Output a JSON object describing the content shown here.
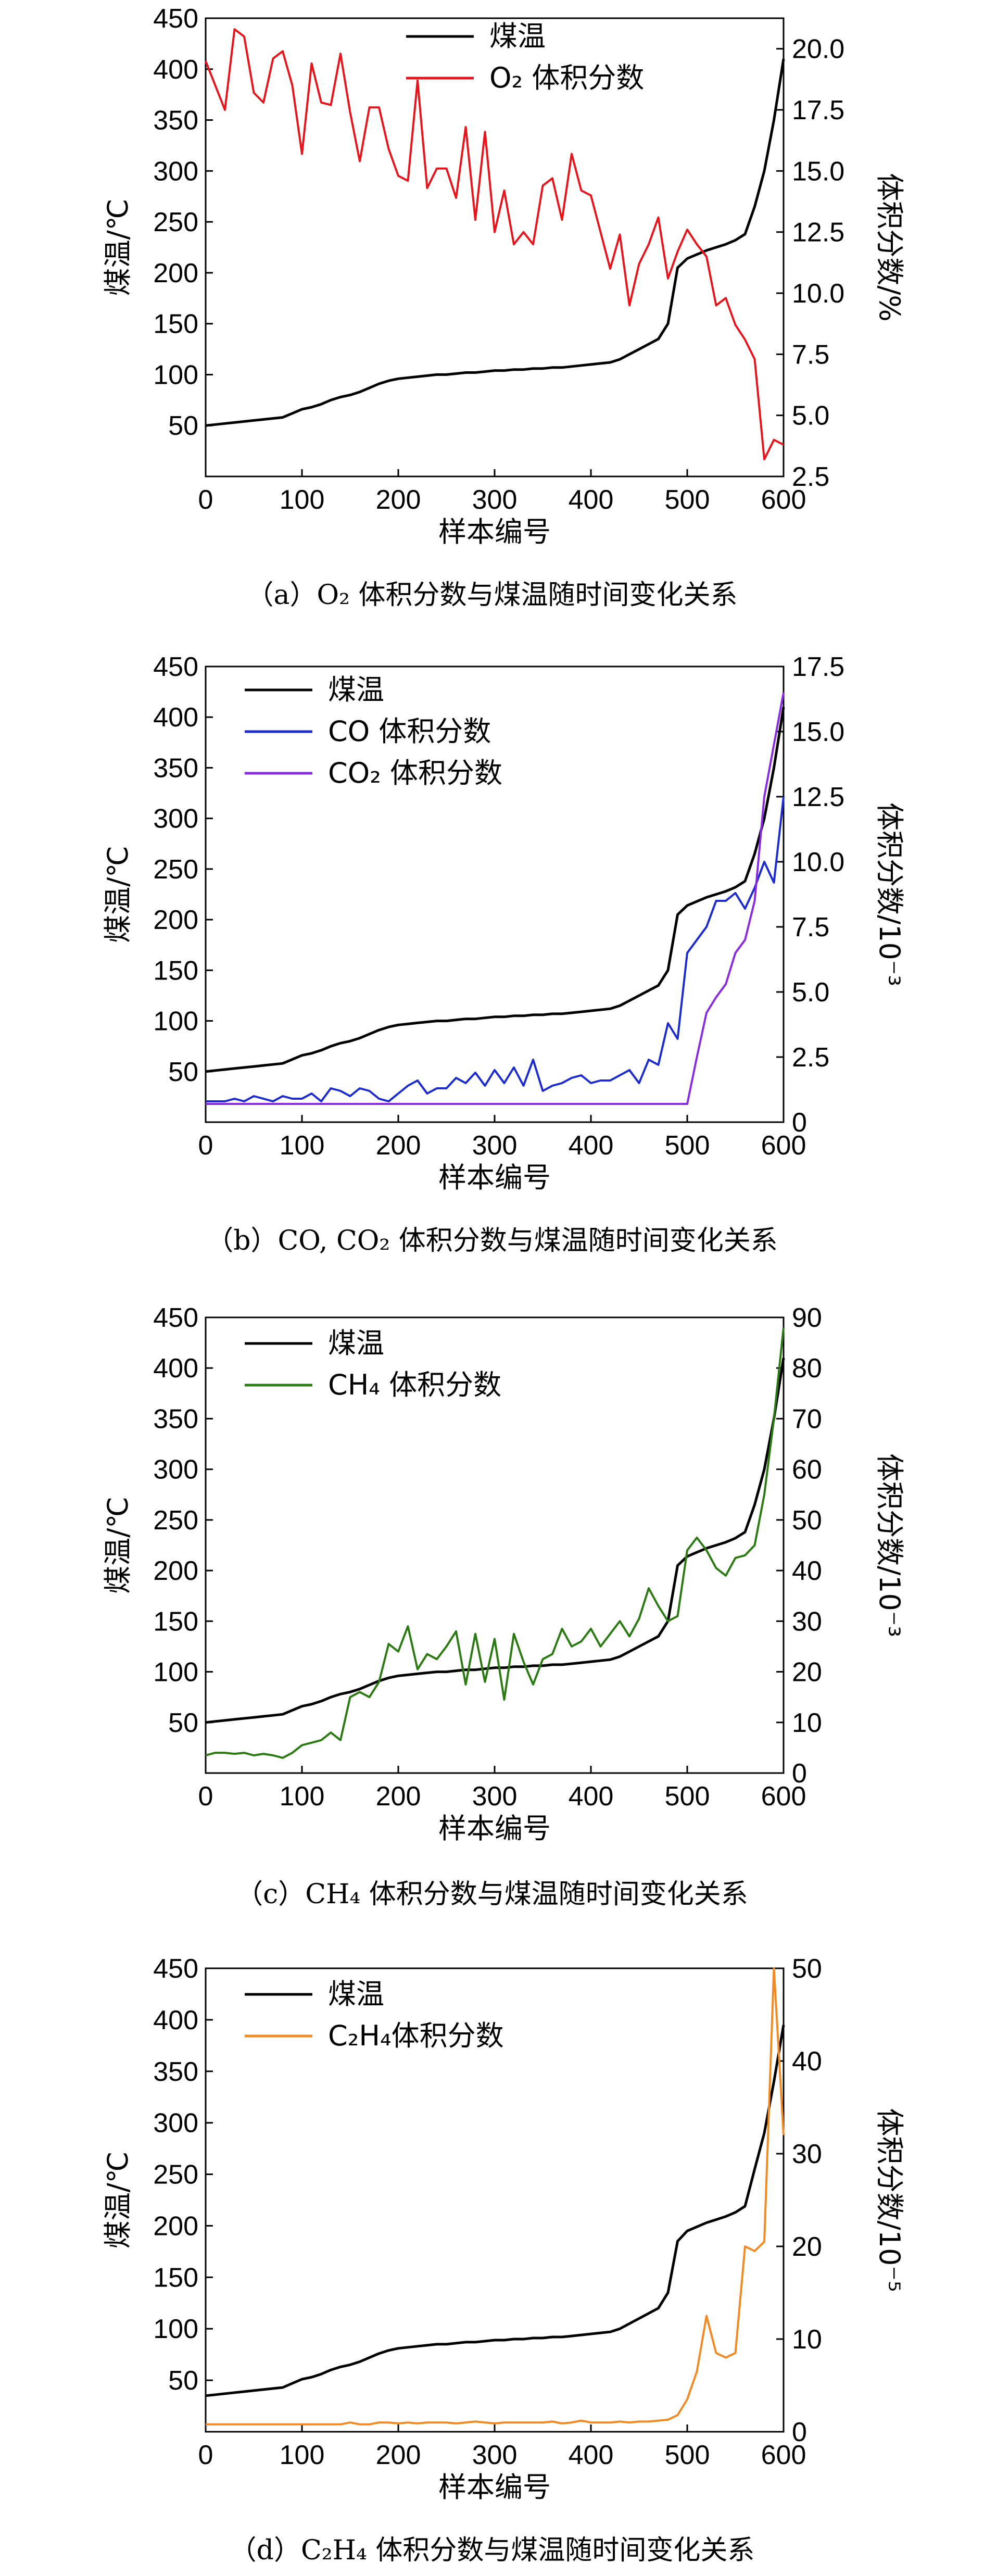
{
  "chart_data": [
    {
      "type": "line",
      "caption": "（a）O₂ 体积分数与煤温随时间变化关系",
      "xlabel": "样本编号",
      "ylabel": "煤温/℃",
      "y2label": "体积分数/%",
      "xlim": [
        0,
        600
      ],
      "ylim": [
        0,
        450
      ],
      "y2lim": [
        2.5,
        21.25
      ],
      "xticks": [
        "0",
        "100",
        "200",
        "300",
        "400",
        "500",
        "600"
      ],
      "yticks": [
        "50",
        "100",
        "150",
        "200",
        "250",
        "300",
        "350",
        "400",
        "450"
      ],
      "y2ticks": [
        "2.5",
        "5.0",
        "7.5",
        "10.0",
        "12.5",
        "15.0",
        "17.5",
        "20.0"
      ],
      "legend_position": "top-center",
      "x": [
        0,
        10,
        20,
        30,
        40,
        50,
        60,
        70,
        80,
        90,
        100,
        110,
        120,
        130,
        140,
        150,
        160,
        170,
        180,
        190,
        200,
        210,
        220,
        230,
        240,
        250,
        260,
        270,
        280,
        290,
        300,
        310,
        320,
        330,
        340,
        350,
        360,
        370,
        380,
        390,
        400,
        410,
        420,
        430,
        440,
        450,
        460,
        470,
        480,
        490,
        500,
        510,
        520,
        530,
        540,
        550,
        560,
        570,
        580,
        590,
        600
      ],
      "series": [
        {
          "name": "煤温",
          "axis": "left",
          "color": "#000000",
          "values": [
            50,
            51,
            52,
            53,
            54,
            55,
            56,
            57,
            58,
            62,
            66,
            68,
            71,
            75,
            78,
            80,
            83,
            87,
            91,
            94,
            96,
            97,
            98,
            99,
            100,
            100,
            101,
            102,
            102,
            103,
            104,
            104,
            105,
            105,
            106,
            106,
            107,
            107,
            108,
            109,
            110,
            111,
            112,
            115,
            120,
            125,
            130,
            135,
            150,
            205,
            214,
            218,
            222,
            225,
            228,
            232,
            238,
            265,
            300,
            350,
            410
          ]
        },
        {
          "name": "O₂ 体积分数",
          "axis": "right",
          "color": "#e8141b",
          "values": [
            19.5,
            18.5,
            17.5,
            20.8,
            20.5,
            18.2,
            17.8,
            19.6,
            19.9,
            18.5,
            15.7,
            19.4,
            17.8,
            17.7,
            19.8,
            17.4,
            15.4,
            17.6,
            17.6,
            15.9,
            14.8,
            14.6,
            18.7,
            14.3,
            15.1,
            15.1,
            13.9,
            16.8,
            13.0,
            16.6,
            12.5,
            14.2,
            12.0,
            12.5,
            12.0,
            14.4,
            14.7,
            13.0,
            15.7,
            14.2,
            14.0,
            12.5,
            11.0,
            12.4,
            9.5,
            11.2,
            12.0,
            13.1,
            10.6,
            11.7,
            12.6,
            12.0,
            11.5,
            9.5,
            9.8,
            8.7,
            8.1,
            7.3,
            3.2,
            4.0,
            3.8
          ]
        }
      ]
    },
    {
      "type": "line",
      "caption": "（b）CO, CO₂ 体积分数与煤温随时间变化关系",
      "xlabel": "样本编号",
      "ylabel": "煤温/℃",
      "y2label": "体积分数/10⁻³",
      "xlim": [
        0,
        600
      ],
      "ylim": [
        0,
        450
      ],
      "y2lim": [
        0,
        17.5
      ],
      "xticks": [
        "0",
        "100",
        "200",
        "300",
        "400",
        "500",
        "600"
      ],
      "yticks": [
        "50",
        "100",
        "150",
        "200",
        "250",
        "300",
        "350",
        "400",
        "450"
      ],
      "y2ticks": [
        "0",
        "2.5",
        "5.0",
        "7.5",
        "10.0",
        "12.5",
        "15.0",
        "17.5"
      ],
      "legend_position": "top-left",
      "x": [
        0,
        10,
        20,
        30,
        40,
        50,
        60,
        70,
        80,
        90,
        100,
        110,
        120,
        130,
        140,
        150,
        160,
        170,
        180,
        190,
        200,
        210,
        220,
        230,
        240,
        250,
        260,
        270,
        280,
        290,
        300,
        310,
        320,
        330,
        340,
        350,
        360,
        370,
        380,
        390,
        400,
        410,
        420,
        430,
        440,
        450,
        460,
        470,
        480,
        490,
        500,
        510,
        520,
        530,
        540,
        550,
        560,
        570,
        580,
        590,
        600
      ],
      "series": [
        {
          "name": "煤温",
          "axis": "left",
          "color": "#000000",
          "values": [
            50,
            51,
            52,
            53,
            54,
            55,
            56,
            57,
            58,
            62,
            66,
            68,
            71,
            75,
            78,
            80,
            83,
            87,
            91,
            94,
            96,
            97,
            98,
            99,
            100,
            100,
            101,
            102,
            102,
            103,
            104,
            104,
            105,
            105,
            106,
            106,
            107,
            107,
            108,
            109,
            110,
            111,
            112,
            115,
            120,
            125,
            130,
            135,
            150,
            205,
            214,
            218,
            222,
            225,
            228,
            232,
            238,
            265,
            300,
            350,
            410
          ]
        },
        {
          "name": "CO 体积分数",
          "axis": "right",
          "color": "#1b2bd0",
          "values": [
            0.8,
            0.8,
            0.8,
            0.9,
            0.8,
            1.0,
            0.9,
            0.8,
            1.0,
            0.9,
            0.9,
            1.1,
            0.8,
            1.3,
            1.2,
            1.0,
            1.3,
            1.2,
            0.9,
            0.8,
            1.1,
            1.4,
            1.6,
            1.1,
            1.3,
            1.3,
            1.7,
            1.5,
            1.9,
            1.4,
            2.0,
            1.5,
            2.1,
            1.4,
            2.4,
            1.2,
            1.4,
            1.5,
            1.7,
            1.8,
            1.5,
            1.6,
            1.6,
            1.8,
            2.0,
            1.5,
            2.4,
            2.2,
            3.8,
            3.2,
            6.5,
            7.0,
            7.5,
            8.5,
            8.5,
            8.8,
            8.2,
            9.0,
            10.0,
            9.2,
            12.5
          ]
        },
        {
          "name": "CO₂ 体积分数",
          "axis": "right",
          "color": "#8a2be2",
          "values": [
            0.7,
            0.7,
            0.7,
            0.7,
            0.7,
            0.7,
            0.7,
            0.7,
            0.7,
            0.7,
            0.7,
            0.7,
            0.7,
            0.7,
            0.7,
            0.7,
            0.7,
            0.7,
            0.7,
            0.7,
            0.7,
            0.7,
            0.7,
            0.7,
            0.7,
            0.7,
            0.7,
            0.7,
            0.7,
            0.7,
            0.7,
            0.7,
            0.7,
            0.7,
            0.7,
            0.7,
            0.7,
            0.7,
            0.7,
            0.7,
            0.7,
            0.7,
            0.7,
            0.7,
            0.7,
            0.7,
            0.7,
            0.7,
            0.7,
            0.7,
            0.7,
            2.5,
            4.2,
            4.8,
            5.3,
            6.5,
            7.0,
            8.5,
            12.5,
            14.5,
            16.5
          ]
        }
      ]
    },
    {
      "type": "line",
      "caption": "（c）CH₄ 体积分数与煤温随时间变化关系",
      "xlabel": "样本编号",
      "ylabel": "煤温/℃",
      "y2label": "体积分数/10⁻³",
      "xlim": [
        0,
        600
      ],
      "ylim": [
        0,
        450
      ],
      "y2lim": [
        0,
        90
      ],
      "xticks": [
        "0",
        "100",
        "200",
        "300",
        "400",
        "500",
        "600"
      ],
      "yticks": [
        "50",
        "100",
        "150",
        "200",
        "250",
        "300",
        "350",
        "400",
        "450"
      ],
      "y2ticks": [
        "0",
        "10",
        "20",
        "30",
        "40",
        "50",
        "60",
        "70",
        "80",
        "90"
      ],
      "legend_position": "top-left",
      "x": [
        0,
        10,
        20,
        30,
        40,
        50,
        60,
        70,
        80,
        90,
        100,
        110,
        120,
        130,
        140,
        150,
        160,
        170,
        180,
        190,
        200,
        210,
        220,
        230,
        240,
        250,
        260,
        270,
        280,
        290,
        300,
        310,
        320,
        330,
        340,
        350,
        360,
        370,
        380,
        390,
        400,
        410,
        420,
        430,
        440,
        450,
        460,
        470,
        480,
        490,
        500,
        510,
        520,
        530,
        540,
        550,
        560,
        570,
        580,
        590,
        600
      ],
      "series": [
        {
          "name": "煤温",
          "axis": "left",
          "color": "#000000",
          "values": [
            50,
            51,
            52,
            53,
            54,
            55,
            56,
            57,
            58,
            62,
            66,
            68,
            71,
            75,
            78,
            80,
            83,
            87,
            91,
            94,
            96,
            97,
            98,
            99,
            100,
            100,
            101,
            102,
            102,
            103,
            104,
            104,
            105,
            105,
            106,
            106,
            107,
            107,
            108,
            109,
            110,
            111,
            112,
            115,
            120,
            125,
            130,
            135,
            150,
            205,
            214,
            218,
            222,
            225,
            228,
            232,
            238,
            265,
            300,
            350,
            410
          ]
        },
        {
          "name": "CH₄ 体积分数",
          "axis": "right",
          "color": "#2a7a12",
          "values": [
            3.5,
            4.0,
            4.0,
            3.8,
            4.0,
            3.5,
            3.8,
            3.5,
            3.0,
            4.0,
            5.5,
            6.0,
            6.5,
            8.0,
            6.5,
            15.0,
            16.0,
            15.0,
            18.0,
            25.5,
            24.0,
            29.0,
            20.5,
            23.5,
            22.5,
            25.0,
            28.0,
            17.5,
            27.5,
            18.0,
            26.5,
            14.5,
            27.5,
            22.0,
            17.5,
            22.5,
            23.5,
            28.5,
            25.0,
            26.0,
            28.5,
            25.0,
            27.5,
            30.0,
            27.0,
            30.5,
            36.5,
            33.0,
            30.0,
            31.0,
            44.0,
            46.5,
            44.0,
            40.5,
            39.0,
            42.5,
            43.0,
            45.0,
            55.0,
            70.0,
            88.0
          ]
        }
      ]
    },
    {
      "type": "line",
      "caption": "（d）C₂H₄ 体积分数与煤温随时间变化关系",
      "xlabel": "样本编号",
      "ylabel": "煤温/℃",
      "y2label": "体积分数/10⁻⁵",
      "xlim": [
        0,
        600
      ],
      "ylim": [
        0,
        450
      ],
      "y2lim": [
        0,
        50
      ],
      "xticks": [
        "0",
        "100",
        "200",
        "300",
        "400",
        "500",
        "600"
      ],
      "yticks": [
        "50",
        "100",
        "150",
        "200",
        "250",
        "300",
        "350",
        "400",
        "450"
      ],
      "y2ticks": [
        "0",
        "10",
        "20",
        "30",
        "40",
        "50"
      ],
      "legend_position": "top-left",
      "x": [
        0,
        10,
        20,
        30,
        40,
        50,
        60,
        70,
        80,
        90,
        100,
        110,
        120,
        130,
        140,
        150,
        160,
        170,
        180,
        190,
        200,
        210,
        220,
        230,
        240,
        250,
        260,
        270,
        280,
        290,
        300,
        310,
        320,
        330,
        340,
        350,
        360,
        370,
        380,
        390,
        400,
        410,
        420,
        430,
        440,
        450,
        460,
        470,
        480,
        490,
        500,
        510,
        520,
        530,
        540,
        550,
        560,
        570,
        580,
        590,
        600
      ],
      "series": [
        {
          "name": "煤温",
          "axis": "left",
          "color": "#000000",
          "values": [
            35,
            36,
            37,
            38,
            39,
            40,
            41,
            42,
            43,
            47,
            51,
            53,
            56,
            60,
            63,
            65,
            68,
            72,
            76,
            79,
            81,
            82,
            83,
            84,
            85,
            85,
            86,
            87,
            87,
            88,
            89,
            89,
            90,
            90,
            91,
            91,
            92,
            92,
            93,
            94,
            95,
            96,
            97,
            100,
            105,
            110,
            115,
            120,
            135,
            185,
            195,
            199,
            203,
            206,
            209,
            213,
            219,
            255,
            290,
            340,
            395
          ]
        },
        {
          "name": "C₂H₄体积分数",
          "axis": "right",
          "color": "#f28a24",
          "values": [
            0.8,
            0.8,
            0.8,
            0.8,
            0.8,
            0.8,
            0.8,
            0.8,
            0.8,
            0.8,
            0.8,
            0.8,
            0.8,
            0.8,
            0.8,
            1.0,
            0.8,
            0.8,
            1.0,
            1.0,
            0.9,
            1.0,
            0.9,
            1.0,
            1.0,
            1.0,
            0.9,
            1.0,
            1.1,
            1.0,
            0.9,
            1.0,
            1.0,
            1.0,
            1.0,
            1.0,
            1.1,
            0.9,
            1.0,
            1.2,
            1.0,
            1.0,
            1.0,
            1.1,
            1.0,
            1.1,
            1.1,
            1.2,
            1.3,
            1.8,
            3.5,
            6.5,
            12.5,
            8.5,
            8.0,
            8.5,
            20.0,
            19.5,
            20.5,
            50.0,
            32.0
          ]
        }
      ]
    }
  ]
}
